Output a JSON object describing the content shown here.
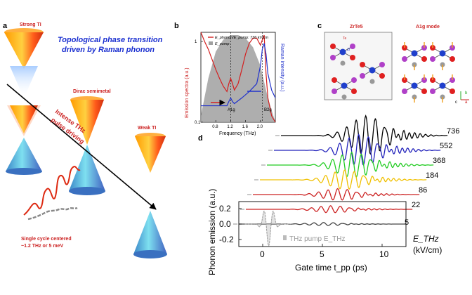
{
  "panel_a": {
    "label": "a",
    "title_line1": "Topological phase transition",
    "title_line2": "driven by Raman phonon",
    "strong_ti": "Strong TI",
    "dirac": "Dirac semimetal",
    "weak_ti": "Weak TI",
    "drive_line1": "Intense THz",
    "drive_line2": "pulse driving",
    "pulse_line1": "Single cycle centered",
    "pulse_line2": "~1.2 THz or 5 meV"
  },
  "panel_b": {
    "label": "b",
    "legend_emission": "E_phonon/E_pump: 736 kV/cm",
    "legend_pump": "E_pump",
    "ylabel_left": "Emission spectra (a.u.)",
    "ylabel_right": "Raman intensity (a.u.)",
    "xlabel": "Frequency (THz)",
    "peak_a1g": "A1g",
    "peak_b2g": "B2g",
    "colors": {
      "emission": "#d42020",
      "raman": "#2233cc",
      "pump": "#a0a0a0"
    },
    "chart_data": {
      "type": "line",
      "xlim": [
        0.4,
        2.4
      ],
      "xticks": [
        "0.8",
        "1.2",
        "1.6",
        "2.0"
      ],
      "ylim_left": [
        0.1,
        1.3
      ],
      "yticks_left": [
        "0.1",
        "1"
      ],
      "log_scale_left": true,
      "series": [
        {
          "name": "E_phonon/E_pump: 736 kV/cm",
          "x": [
            0.4,
            0.5,
            0.6,
            0.7,
            0.8,
            0.9,
            1.0,
            1.1,
            1.15,
            1.2,
            1.25,
            1.3,
            1.4,
            1.5,
            1.6,
            1.7,
            1.8,
            1.9,
            2.0,
            2.05,
            2.1,
            2.15,
            2.2,
            2.3,
            2.4
          ],
          "y": [
            1.3,
            1.0,
            0.8,
            0.6,
            0.45,
            0.35,
            0.28,
            0.24,
            0.3,
            0.35,
            0.3,
            0.25,
            0.3,
            0.45,
            0.7,
            0.95,
            1.1,
            1.1,
            0.9,
            1.05,
            1.2,
            0.4,
            0.2,
            0.12,
            0.1
          ]
        },
        {
          "name": "E_pump",
          "x": [
            0.4,
            0.6,
            0.8,
            1.0,
            1.2,
            1.4,
            1.6,
            1.8,
            2.0,
            2.2,
            2.4
          ],
          "y": [
            0.12,
            0.35,
            0.75,
            1.05,
            1.2,
            1.2,
            1.1,
            0.85,
            0.5,
            0.2,
            0.1
          ]
        },
        {
          "name": "Raman",
          "x": [
            0.4,
            0.6,
            0.8,
            1.0,
            1.1,
            1.15,
            1.2,
            1.25,
            1.3,
            1.5,
            1.7,
            1.9,
            2.0,
            2.05,
            2.1,
            2.15,
            2.2,
            2.3,
            2.4
          ],
          "y": [
            0.16,
            0.16,
            0.16,
            0.16,
            0.16,
            0.18,
            0.2,
            0.18,
            0.17,
            0.2,
            0.24,
            0.3,
            0.5,
            0.8,
            0.95,
            0.7,
            0.4,
            0.25,
            0.2
          ]
        }
      ]
    }
  },
  "panel_c": {
    "label": "c",
    "title_left": "ZrTe5",
    "title_right": "A1g mode",
    "atom_te": "Te",
    "atom_zr": "Zr",
    "axis_b": "b",
    "axis_c": "c",
    "axis_a": "a"
  },
  "panel_d": {
    "label": "d",
    "ylabel": "Phonon emission (a.u.)",
    "xlabel": "Gate time t_pp (ps)",
    "field_unit_line1": "E_THz",
    "field_unit_line2": "(kV/cm)",
    "pump_legend": "THz pump E_THz",
    "chart_data": {
      "type": "line",
      "xlim": [
        -2,
        12
      ],
      "xticks": [
        "0",
        "5",
        "10"
      ],
      "ylim": [
        -0.3,
        0.3
      ],
      "yticks": [
        "0.2",
        "0.0",
        "-0.2"
      ],
      "fields": [
        "736",
        "552",
        "368",
        "184",
        "86",
        "22",
        "5"
      ],
      "trace_colors": [
        "#000000",
        "#2222bb",
        "#22cc22",
        "#f0c000",
        "#cc2222",
        "#cc2222",
        "#444444"
      ],
      "amplitudes": [
        1.0,
        0.8,
        0.65,
        0.5,
        0.3,
        0.18,
        0.08
      ],
      "pump_center_ps": 0.5
    }
  }
}
